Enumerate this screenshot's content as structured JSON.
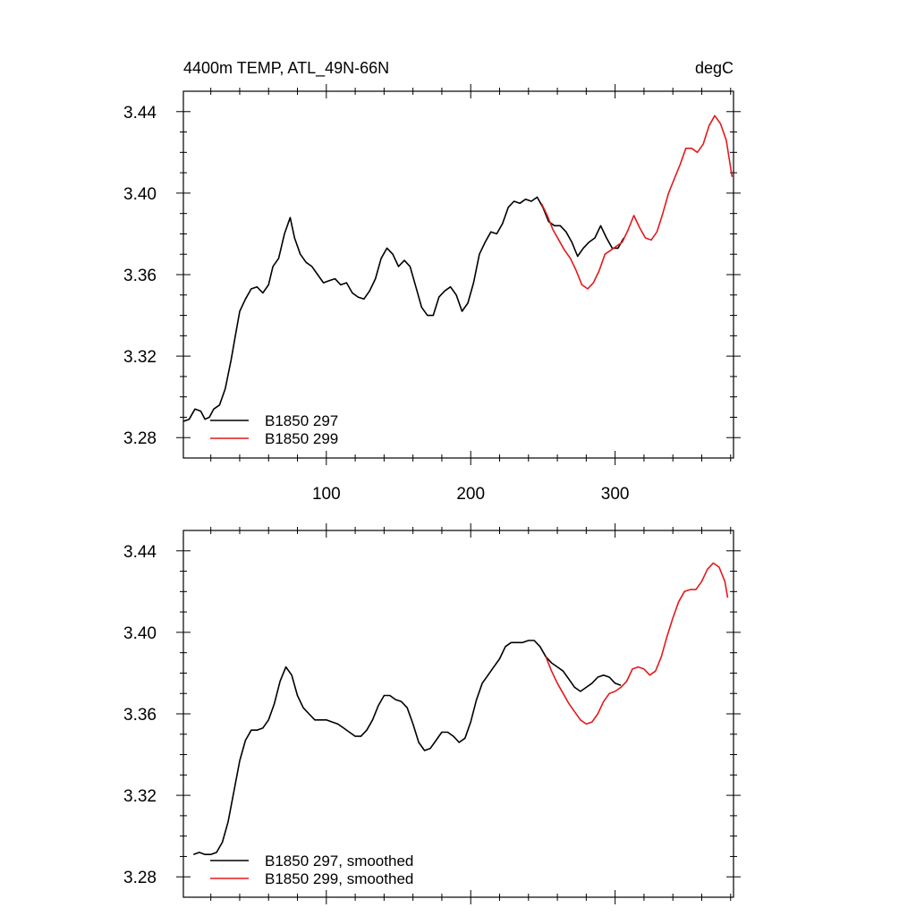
{
  "chart_data": [
    {
      "type": "line",
      "title": "4400m TEMP, ATL_49N-66N",
      "units": "degC",
      "xlabel": "",
      "ylabel": "",
      "xlim": [
        1,
        382
      ],
      "ylim": [
        3.27,
        3.45
      ],
      "xticks": [
        100,
        200,
        300
      ],
      "yticks": [
        3.28,
        3.32,
        3.36,
        3.4,
        3.44
      ],
      "ytick_labels": [
        "3.28",
        "3.32",
        "3.36",
        "3.40",
        "3.44"
      ],
      "legend_position": "bottom-left",
      "series": [
        {
          "name": "B1850 297",
          "color": "#000000",
          "points": [
            [
              1,
              3.288
            ],
            [
              5,
              3.289
            ],
            [
              9,
              3.294
            ],
            [
              13,
              3.293
            ],
            [
              16,
              3.289
            ],
            [
              19,
              3.29
            ],
            [
              22,
              3.294
            ],
            [
              26,
              3.296
            ],
            [
              30,
              3.304
            ],
            [
              34,
              3.318
            ],
            [
              37,
              3.33
            ],
            [
              40,
              3.342
            ],
            [
              44,
              3.348
            ],
            [
              48,
              3.353
            ],
            [
              52,
              3.354
            ],
            [
              56,
              3.351
            ],
            [
              60,
              3.355
            ],
            [
              63,
              3.364
            ],
            [
              67,
              3.368
            ],
            [
              71,
              3.38
            ],
            [
              75,
              3.388
            ],
            [
              78,
              3.378
            ],
            [
              82,
              3.37
            ],
            [
              86,
              3.366
            ],
            [
              90,
              3.364
            ],
            [
              94,
              3.36
            ],
            [
              98,
              3.356
            ],
            [
              102,
              3.357
            ],
            [
              106,
              3.358
            ],
            [
              110,
              3.355
            ],
            [
              114,
              3.356
            ],
            [
              118,
              3.351
            ],
            [
              122,
              3.349
            ],
            [
              126,
              3.348
            ],
            [
              130,
              3.352
            ],
            [
              134,
              3.358
            ],
            [
              138,
              3.368
            ],
            [
              142,
              3.373
            ],
            [
              146,
              3.37
            ],
            [
              150,
              3.364
            ],
            [
              154,
              3.367
            ],
            [
              158,
              3.364
            ],
            [
              162,
              3.354
            ],
            [
              166,
              3.344
            ],
            [
              170,
              3.34
            ],
            [
              174,
              3.34
            ],
            [
              178,
              3.349
            ],
            [
              182,
              3.352
            ],
            [
              186,
              3.354
            ],
            [
              190,
              3.35
            ],
            [
              194,
              3.342
            ],
            [
              198,
              3.346
            ],
            [
              202,
              3.356
            ],
            [
              206,
              3.37
            ],
            [
              210,
              3.376
            ],
            [
              214,
              3.381
            ],
            [
              218,
              3.38
            ],
            [
              222,
              3.385
            ],
            [
              226,
              3.393
            ],
            [
              230,
              3.396
            ],
            [
              234,
              3.395
            ],
            [
              238,
              3.397
            ],
            [
              242,
              3.396
            ],
            [
              246,
              3.398
            ],
            [
              250,
              3.393
            ],
            [
              254,
              3.386
            ],
            [
              258,
              3.384
            ],
            [
              262,
              3.384
            ],
            [
              266,
              3.381
            ],
            [
              270,
              3.376
            ],
            [
              274,
              3.369
            ],
            [
              278,
              3.373
            ],
            [
              282,
              3.376
            ],
            [
              286,
              3.378
            ],
            [
              290,
              3.384
            ],
            [
              294,
              3.378
            ],
            [
              298,
              3.373
            ],
            [
              302,
              3.373
            ],
            [
              306,
              3.378
            ]
          ]
        },
        {
          "name": "B1850 299",
          "color": "#e31a1c",
          "points": [
            [
              249,
              3.395
            ],
            [
              253,
              3.389
            ],
            [
              257,
              3.382
            ],
            [
              261,
              3.377
            ],
            [
              265,
              3.372
            ],
            [
              269,
              3.368
            ],
            [
              273,
              3.362
            ],
            [
              277,
              3.355
            ],
            [
              281,
              3.353
            ],
            [
              285,
              3.356
            ],
            [
              289,
              3.362
            ],
            [
              293,
              3.37
            ],
            [
              297,
              3.372
            ],
            [
              301,
              3.374
            ],
            [
              305,
              3.376
            ],
            [
              309,
              3.382
            ],
            [
              313,
              3.389
            ],
            [
              317,
              3.383
            ],
            [
              321,
              3.378
            ],
            [
              325,
              3.377
            ],
            [
              329,
              3.381
            ],
            [
              333,
              3.39
            ],
            [
              337,
              3.4
            ],
            [
              341,
              3.407
            ],
            [
              345,
              3.414
            ],
            [
              349,
              3.422
            ],
            [
              353,
              3.422
            ],
            [
              357,
              3.42
            ],
            [
              361,
              3.424
            ],
            [
              365,
              3.433
            ],
            [
              369,
              3.438
            ],
            [
              373,
              3.434
            ],
            [
              377,
              3.426
            ],
            [
              381,
              3.408
            ]
          ]
        }
      ]
    },
    {
      "type": "line",
      "title": "",
      "units": "",
      "xlabel": "",
      "ylabel": "",
      "xlim": [
        1,
        382
      ],
      "ylim": [
        3.27,
        3.45
      ],
      "xticks": [
        100,
        200,
        300
      ],
      "yticks": [
        3.28,
        3.32,
        3.36,
        3.4,
        3.44
      ],
      "ytick_labels": [
        "3.28",
        "3.32",
        "3.36",
        "3.40",
        "3.44"
      ],
      "legend_position": "bottom-left",
      "series": [
        {
          "name": "B1850 297, smoothed",
          "color": "#000000",
          "points": [
            [
              8,
              3.291
            ],
            [
              12,
              3.292
            ],
            [
              16,
              3.291
            ],
            [
              20,
              3.291
            ],
            [
              24,
              3.292
            ],
            [
              28,
              3.297
            ],
            [
              32,
              3.307
            ],
            [
              36,
              3.322
            ],
            [
              40,
              3.337
            ],
            [
              44,
              3.347
            ],
            [
              48,
              3.352
            ],
            [
              52,
              3.352
            ],
            [
              56,
              3.353
            ],
            [
              60,
              3.357
            ],
            [
              64,
              3.365
            ],
            [
              68,
              3.376
            ],
            [
              72,
              3.383
            ],
            [
              76,
              3.379
            ],
            [
              80,
              3.369
            ],
            [
              84,
              3.363
            ],
            [
              88,
              3.36
            ],
            [
              92,
              3.357
            ],
            [
              96,
              3.357
            ],
            [
              100,
              3.357
            ],
            [
              104,
              3.356
            ],
            [
              108,
              3.355
            ],
            [
              112,
              3.353
            ],
            [
              116,
              3.351
            ],
            [
              120,
              3.349
            ],
            [
              124,
              3.349
            ],
            [
              128,
              3.352
            ],
            [
              132,
              3.357
            ],
            [
              136,
              3.364
            ],
            [
              140,
              3.369
            ],
            [
              144,
              3.369
            ],
            [
              148,
              3.367
            ],
            [
              152,
              3.366
            ],
            [
              156,
              3.363
            ],
            [
              160,
              3.355
            ],
            [
              164,
              3.346
            ],
            [
              168,
              3.342
            ],
            [
              172,
              3.343
            ],
            [
              176,
              3.347
            ],
            [
              180,
              3.351
            ],
            [
              184,
              3.351
            ],
            [
              188,
              3.349
            ],
            [
              192,
              3.346
            ],
            [
              196,
              3.348
            ],
            [
              200,
              3.356
            ],
            [
              204,
              3.367
            ],
            [
              208,
              3.375
            ],
            [
              212,
              3.379
            ],
            [
              216,
              3.383
            ],
            [
              220,
              3.387
            ],
            [
              224,
              3.393
            ],
            [
              228,
              3.395
            ],
            [
              232,
              3.395
            ],
            [
              236,
              3.395
            ],
            [
              240,
              3.396
            ],
            [
              244,
              3.396
            ],
            [
              248,
              3.393
            ],
            [
              252,
              3.388
            ],
            [
              256,
              3.385
            ],
            [
              260,
              3.383
            ],
            [
              264,
              3.381
            ],
            [
              268,
              3.377
            ],
            [
              272,
              3.373
            ],
            [
              276,
              3.371
            ],
            [
              280,
              3.373
            ],
            [
              284,
              3.375
            ],
            [
              288,
              3.378
            ],
            [
              292,
              3.379
            ],
            [
              296,
              3.378
            ],
            [
              300,
              3.375
            ],
            [
              304,
              3.374
            ]
          ]
        },
        {
          "name": "B1850 299, smoothed",
          "color": "#e31a1c",
          "points": [
            [
              252,
              3.388
            ],
            [
              256,
              3.381
            ],
            [
              260,
              3.375
            ],
            [
              264,
              3.37
            ],
            [
              268,
              3.365
            ],
            [
              272,
              3.361
            ],
            [
              276,
              3.357
            ],
            [
              280,
              3.355
            ],
            [
              284,
              3.356
            ],
            [
              288,
              3.36
            ],
            [
              292,
              3.366
            ],
            [
              296,
              3.37
            ],
            [
              300,
              3.371
            ],
            [
              304,
              3.373
            ],
            [
              308,
              3.376
            ],
            [
              312,
              3.382
            ],
            [
              316,
              3.383
            ],
            [
              320,
              3.382
            ],
            [
              324,
              3.379
            ],
            [
              328,
              3.381
            ],
            [
              332,
              3.388
            ],
            [
              336,
              3.398
            ],
            [
              340,
              3.407
            ],
            [
              344,
              3.415
            ],
            [
              348,
              3.42
            ],
            [
              352,
              3.421
            ],
            [
              356,
              3.421
            ],
            [
              360,
              3.425
            ],
            [
              364,
              3.431
            ],
            [
              368,
              3.434
            ],
            [
              372,
              3.432
            ],
            [
              376,
              3.425
            ],
            [
              378,
              3.417
            ]
          ]
        }
      ]
    }
  ]
}
